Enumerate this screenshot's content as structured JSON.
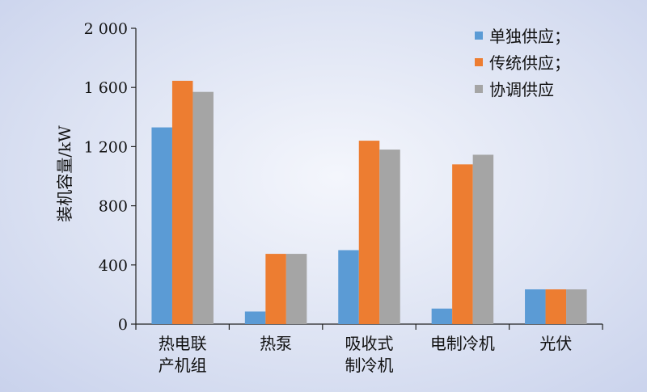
{
  "chart_data": {
    "type": "bar",
    "title": "",
    "xlabel": "",
    "ylabel": "装机容量/kW",
    "ylim": [
      0,
      2000
    ],
    "yticks": [
      0,
      400,
      800,
      1200,
      1600,
      2000
    ],
    "ytick_labels": [
      "0",
      "400",
      "800",
      "1 200",
      "1 600",
      "2 000"
    ],
    "grid": false,
    "legend_position": "top-right",
    "categories": [
      [
        "热电联",
        "产机组"
      ],
      [
        "热泵"
      ],
      [
        "吸收式",
        "制冷机"
      ],
      [
        "电制冷机"
      ],
      [
        "光伏"
      ]
    ],
    "series": [
      {
        "name": "单独供应；",
        "color": "#5b9bd5",
        "values": [
          1330,
          85,
          500,
          105,
          235
        ]
      },
      {
        "name": "传统供应；",
        "color": "#ed7d31",
        "values": [
          1645,
          475,
          1240,
          1080,
          235
        ]
      },
      {
        "name": "协调供应",
        "color": "#a5a5a5",
        "values": [
          1570,
          475,
          1180,
          1145,
          235
        ]
      }
    ]
  }
}
